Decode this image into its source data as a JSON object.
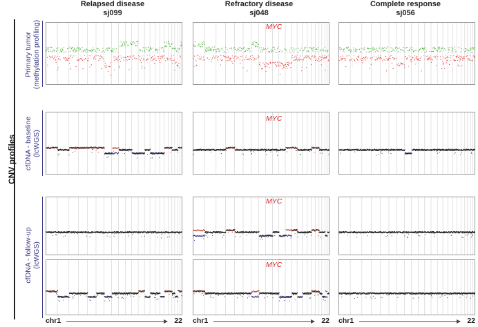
{
  "figure": {
    "main_label": "CNV profiles",
    "columns": [
      {
        "condition": "Relapsed disease",
        "sample": "sj099"
      },
      {
        "condition": "Refractory disease",
        "sample": "sj048"
      },
      {
        "condition": "Complete response",
        "sample": "sj056"
      }
    ],
    "row_labels": [
      {
        "line1": "Primary tumor",
        "line2": "(methylation profiling)"
      },
      {
        "line1": "cfDNA - baseline",
        "line2": "(lcWGS)"
      },
      {
        "line1": "cfDNA - follow-up",
        "line2": "(lcWGS)"
      }
    ],
    "gene_label": "MYC",
    "x_axis": {
      "start": "chr1",
      "end": "22"
    }
  },
  "colors": {
    "gain_methylation": "#4caf3a",
    "loss_methylation": "#e53935",
    "neutral_methylation": "#b8b8b8",
    "gain_lcwgs": "#c0392b",
    "loss_lcwgs": "#2a2a8a",
    "neutral_lcwgs": "#222222",
    "row_label": "#3b3b8a",
    "gene_label": "#d42525",
    "chrom_grid": "#cfcfcf"
  },
  "profiles": [
    {
      "panel": "p-1-1",
      "gains": [
        [
          8,
          11
        ],
        [
          17,
          18
        ],
        [
          21,
          22
        ]
      ],
      "losses": [
        [
          7,
          8
        ],
        [
          20,
          21
        ]
      ]
    },
    {
      "panel": "p-1-2",
      "gains": [
        [
          1,
          1
        ],
        [
          7,
          7
        ],
        [
          17,
          18
        ]
      ],
      "losses": [
        [
          8,
          11
        ],
        [
          11,
          12
        ],
        [
          17,
          18
        ]
      ],
      "myc": true
    },
    {
      "panel": "p-1-3",
      "gains": [],
      "losses": [
        [
          7,
          7
        ]
      ]
    },
    {
      "panel": "p-2-1",
      "gains": [
        [
          1,
          1
        ],
        [
          3,
          6
        ],
        [
          8,
          8
        ],
        [
          17,
          18
        ],
        [
          21,
          22
        ]
      ],
      "losses": [
        [
          7,
          8
        ],
        [
          11,
          12
        ],
        [
          14,
          16
        ]
      ]
    },
    {
      "panel": "p-2-2",
      "gains": [
        [
          4,
          4
        ],
        [
          12,
          13
        ],
        [
          17,
          18
        ]
      ],
      "losses": [],
      "myc": true
    },
    {
      "panel": "p-2-3",
      "gains": [],
      "losses": [
        [
          8,
          8
        ]
      ]
    },
    {
      "panel": "p-3-1",
      "gains": [],
      "losses": []
    },
    {
      "panel": "p-3-2",
      "gains": [
        [
          1,
          1
        ],
        [
          4,
          4
        ],
        [
          12,
          13
        ],
        [
          17,
          18
        ]
      ],
      "losses": [
        [
          1,
          1
        ],
        [
          8,
          9
        ],
        [
          11,
          12
        ],
        [
          21,
          21
        ]
      ],
      "myc": true
    },
    {
      "panel": "p-3-3",
      "gains": [],
      "losses": []
    },
    {
      "panel": "p-4-1",
      "gains": [
        [
          1,
          1
        ],
        [
          12,
          12
        ],
        [
          17,
          18
        ],
        [
          21,
          22
        ]
      ],
      "losses": [
        [
          2,
          2
        ],
        [
          5,
          5
        ],
        [
          7,
          7
        ],
        [
          13,
          13
        ],
        [
          16,
          16
        ],
        [
          20,
          20
        ]
      ]
    },
    {
      "panel": "p-4-2",
      "gains": [
        [
          1,
          1
        ],
        [
          7,
          7
        ],
        [
          17,
          18
        ],
        [
          21,
          21
        ]
      ],
      "losses": [
        [
          7,
          7
        ],
        [
          11,
          12
        ],
        [
          14,
          14
        ],
        [
          20,
          21
        ]
      ],
      "myc": true
    },
    {
      "panel": "p-4-3",
      "gains": [],
      "losses": []
    }
  ]
}
